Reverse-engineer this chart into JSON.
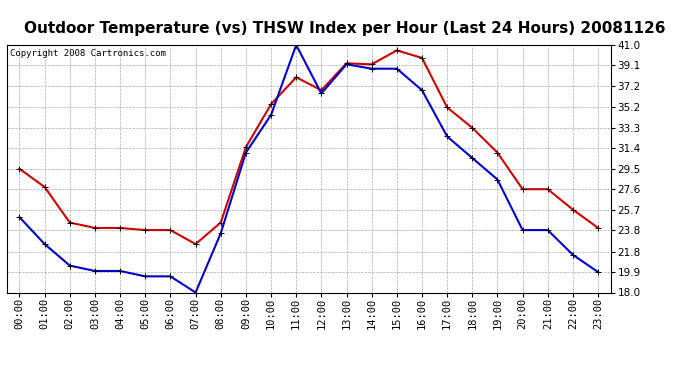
{
  "title": "Outdoor Temperature (vs) THSW Index per Hour (Last 24 Hours) 20081126",
  "copyright": "Copyright 2008 Cartronics.com",
  "hours": [
    "00:00",
    "01:00",
    "02:00",
    "03:00",
    "04:00",
    "05:00",
    "06:00",
    "07:00",
    "08:00",
    "09:00",
    "10:00",
    "11:00",
    "12:00",
    "13:00",
    "14:00",
    "15:00",
    "16:00",
    "17:00",
    "18:00",
    "19:00",
    "20:00",
    "21:00",
    "22:00",
    "23:00"
  ],
  "temp_blue": [
    25.0,
    22.5,
    20.5,
    20.0,
    20.0,
    19.5,
    19.5,
    18.0,
    23.5,
    31.0,
    34.5,
    41.0,
    36.5,
    39.2,
    38.8,
    38.8,
    36.8,
    32.5,
    30.5,
    28.5,
    23.8,
    23.8,
    21.5,
    19.9
  ],
  "thsw_red": [
    29.5,
    27.8,
    24.5,
    24.0,
    24.0,
    23.8,
    23.8,
    22.5,
    24.5,
    31.5,
    35.5,
    38.0,
    36.8,
    39.3,
    39.2,
    40.5,
    39.8,
    35.2,
    33.3,
    31.0,
    27.6,
    27.6,
    25.7,
    24.0
  ],
  "ylim_min": 18.0,
  "ylim_max": 41.0,
  "yticks": [
    18.0,
    19.9,
    21.8,
    23.8,
    25.7,
    27.6,
    29.5,
    31.4,
    33.3,
    35.2,
    37.2,
    39.1,
    41.0
  ],
  "line_color_blue": "#0000cc",
  "line_color_red": "#cc0000",
  "marker": "+",
  "markersize": 5,
  "linewidth": 1.5,
  "bg_color": "#ffffff",
  "grid_color": "#aaaaaa",
  "title_fontsize": 11,
  "copyright_fontsize": 6.5,
  "tick_fontsize": 7.5
}
